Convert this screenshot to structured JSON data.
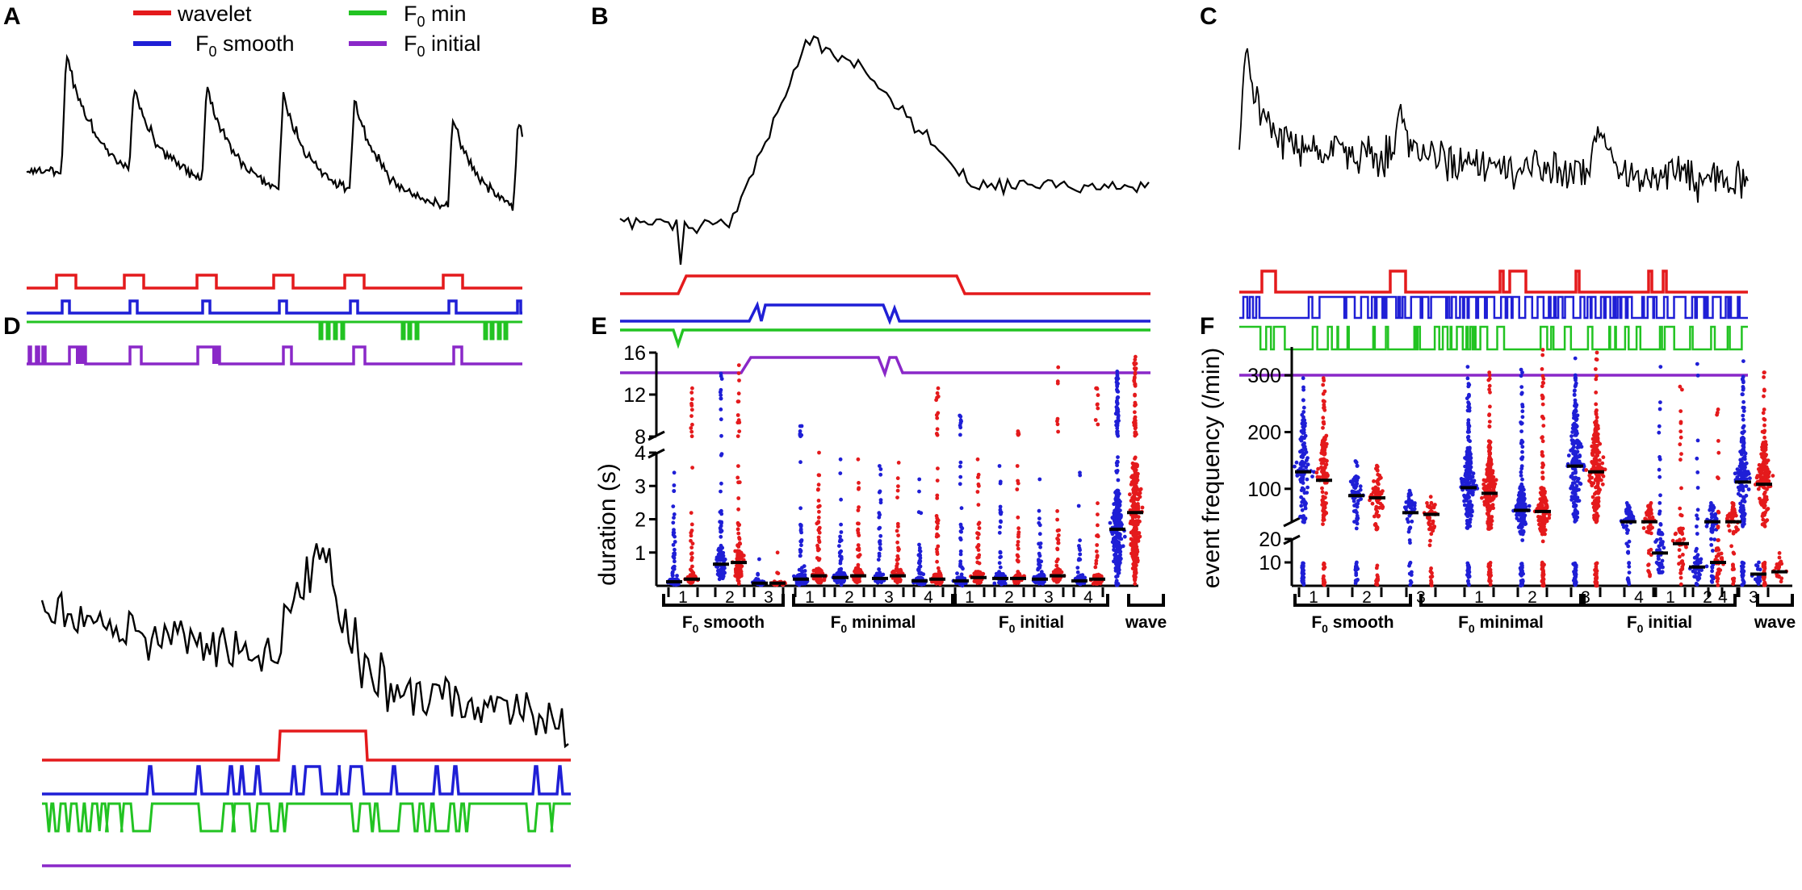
{
  "figure": {
    "panel_labels": [
      "A",
      "B",
      "C",
      "D",
      "E",
      "F"
    ],
    "legend": {
      "wavelet": {
        "label": "wavelet",
        "color": "#e41a1c"
      },
      "f0_smooth": {
        "label_main": "F",
        "label_sub": "0",
        "label_rest": " smooth",
        "color": "#1f1fd6"
      },
      "f0_min": {
        "label_main": "F",
        "label_sub": "0",
        "label_rest": " min",
        "color": "#22c322"
      },
      "f0_initial": {
        "label_main": "F",
        "label_sub": "0",
        "label_rest": " initial",
        "color": "#8a28c8"
      }
    },
    "trace_color": "#000000",
    "scatter_colors": {
      "blue": "#1f1fd6",
      "red": "#e41a1c"
    }
  },
  "chart_data": [
    {
      "panel": "E",
      "type": "scatter",
      "ylabel": "duration (s)",
      "y_ticks_lower": [
        "1",
        "2",
        "3",
        "4"
      ],
      "y_ticks_upper": [
        "8",
        "12",
        "16"
      ],
      "ylim_lower": [
        0,
        4
      ],
      "ylim_upper": [
        8,
        16
      ],
      "groups": [
        {
          "name_main": "F",
          "name_sub": "0",
          "name_rest": " smooth",
          "conditions": [
            "1",
            "2",
            "3"
          ]
        },
        {
          "name_main": "F",
          "name_sub": "0",
          "name_rest": " minimal",
          "conditions": [
            "1",
            "2",
            "3",
            "4"
          ]
        },
        {
          "name_main": "F",
          "name_sub": "0",
          "name_rest": " initial",
          "conditions": [
            "1",
            "2",
            "3",
            "4"
          ]
        },
        {
          "name_main": "wave",
          "name_sub": "",
          "name_rest": "",
          "conditions": [
            ""
          ]
        }
      ],
      "series": [
        {
          "name": "blue",
          "medians": [
            0.12,
            0.65,
            0.08,
            0.2,
            0.25,
            0.22,
            0.15,
            0.15,
            0.22,
            0.2,
            0.15,
            1.7
          ],
          "max": [
            3.4,
            14.0,
            0.8,
            9.0,
            3.8,
            3.6,
            3.2,
            10.0,
            3.6,
            3.2,
            3.4,
            14.2
          ]
        },
        {
          "name": "red",
          "medians": [
            0.2,
            0.7,
            0.08,
            0.3,
            0.3,
            0.3,
            0.2,
            0.25,
            0.22,
            0.3,
            0.2,
            2.2
          ],
          "max": [
            12.6,
            14.8,
            1.0,
            4.0,
            3.8,
            3.7,
            12.6,
            3.8,
            8.5,
            14.6,
            12.6,
            15.6
          ]
        }
      ]
    },
    {
      "panel": "F",
      "type": "scatter",
      "ylabel": "event frequency (/min)",
      "y_ticks_lower": [
        "10",
        "20"
      ],
      "y_ticks_upper": [
        "100",
        "200",
        "300"
      ],
      "ylim_lower": [
        0,
        20
      ],
      "ylim_upper": [
        40,
        350
      ],
      "groups": [
        {
          "name_main": "F",
          "name_sub": "0",
          "name_rest": " smooth",
          "conditions": [
            "1",
            "2",
            "3"
          ]
        },
        {
          "name_main": "F",
          "name_sub": "0",
          "name_rest": " minimal",
          "conditions": [
            "1",
            "2",
            "3",
            "4"
          ]
        },
        {
          "name_main": "F",
          "name_sub": "0",
          "name_rest": " initial",
          "conditions": [
            "1",
            "2",
            "3",
            "4"
          ]
        },
        {
          "name_main": "wave",
          "name_sub": "",
          "name_rest": "",
          "conditions": [
            ""
          ]
        }
      ],
      "series": [
        {
          "name": "blue",
          "medians": [
            130,
            88,
            58,
            102,
            62,
            140,
            42,
            14,
            8,
            112,
            42,
            5
          ],
          "max": [
            295,
            120,
            75,
            315,
            310,
            330,
            75,
            315,
            320,
            325,
            75,
            10
          ]
        },
        {
          "name": "red",
          "medians": [
            115,
            84,
            55,
            92,
            60,
            130,
            42,
            18,
            10,
            108,
            42,
            6
          ],
          "max": [
            295,
            125,
            72,
            305,
            345,
            340,
            75,
            280,
            240,
            305,
            75,
            14
          ]
        }
      ]
    }
  ]
}
